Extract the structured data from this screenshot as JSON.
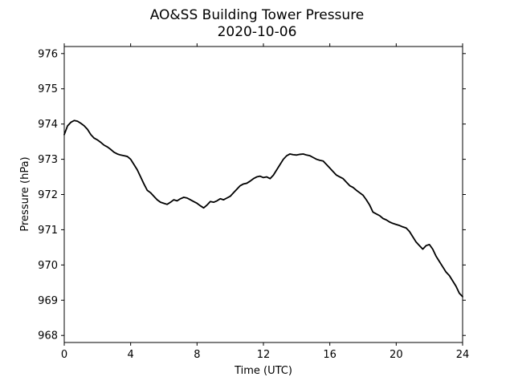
{
  "chart_data": {
    "type": "line",
    "title": "AO&SS Building Tower Pressure",
    "subtitle": "2020-10-06",
    "xlabel": "Time (UTC)",
    "ylabel": "Pressure (hPa)",
    "xlim": [
      0,
      24
    ],
    "ylim": [
      967.8,
      976.2
    ],
    "x_ticks": [
      0,
      4,
      8,
      12,
      16,
      20,
      24
    ],
    "x_tick_labels": [
      "0",
      "4",
      "8",
      "12",
      "16",
      "20",
      "24"
    ],
    "y_ticks": [
      968,
      969,
      970,
      971,
      972,
      973,
      974,
      975,
      976
    ],
    "y_tick_labels": [
      "968",
      "969",
      "970",
      "971",
      "972",
      "973",
      "974",
      "975",
      "976"
    ],
    "grid": false,
    "colors": {
      "line": "#000000",
      "axes": "#000000",
      "background": "#ffffff"
    },
    "series": [
      {
        "x": [
          0.0,
          0.2,
          0.4,
          0.6,
          0.8,
          1.0,
          1.2,
          1.4,
          1.6,
          1.8,
          2.0,
          2.2,
          2.4,
          2.6,
          2.8,
          3.0,
          3.2,
          3.4,
          3.6,
          3.8,
          4.0,
          4.2,
          4.4,
          4.6,
          4.8,
          5.0,
          5.2,
          5.4,
          5.6,
          5.8,
          6.0,
          6.2,
          6.4,
          6.6,
          6.8,
          7.0,
          7.2,
          7.4,
          7.6,
          7.8,
          8.0,
          8.2,
          8.4,
          8.6,
          8.8,
          9.0,
          9.2,
          9.4,
          9.6,
          9.8,
          10.0,
          10.2,
          10.4,
          10.6,
          10.8,
          11.0,
          11.2,
          11.4,
          11.6,
          11.8,
          12.0,
          12.2,
          12.4,
          12.6,
          12.8,
          13.0,
          13.2,
          13.4,
          13.6,
          13.8,
          14.0,
          14.2,
          14.4,
          14.6,
          14.8,
          15.0,
          15.2,
          15.4,
          15.6,
          15.8,
          16.0,
          16.2,
          16.4,
          16.6,
          16.8,
          17.0,
          17.2,
          17.4,
          17.6,
          17.8,
          18.0,
          18.2,
          18.4,
          18.6,
          18.8,
          19.0,
          19.2,
          19.4,
          19.6,
          19.8,
          20.0,
          20.2,
          20.4,
          20.6,
          20.8,
          21.0,
          21.2,
          21.4,
          21.6,
          21.8,
          22.0,
          22.2,
          22.4,
          22.6,
          22.8,
          23.0,
          23.2,
          23.4,
          23.6,
          23.8,
          24.0
        ],
        "y": [
          973.7,
          973.95,
          974.05,
          974.1,
          974.08,
          974.02,
          973.95,
          973.85,
          973.7,
          973.6,
          973.55,
          973.48,
          973.4,
          973.35,
          973.28,
          973.2,
          973.15,
          973.12,
          973.1,
          973.08,
          973.0,
          972.85,
          972.7,
          972.5,
          972.3,
          972.12,
          972.05,
          971.95,
          971.85,
          971.78,
          971.75,
          971.72,
          971.78,
          971.85,
          971.82,
          971.88,
          971.92,
          971.9,
          971.85,
          971.8,
          971.75,
          971.68,
          971.62,
          971.7,
          971.8,
          971.78,
          971.82,
          971.88,
          971.85,
          971.9,
          971.95,
          972.05,
          972.15,
          972.25,
          972.3,
          972.32,
          972.38,
          972.45,
          972.5,
          972.52,
          972.48,
          972.5,
          972.45,
          972.55,
          972.7,
          972.85,
          973.0,
          973.1,
          973.15,
          973.13,
          973.12,
          973.14,
          973.15,
          973.12,
          973.1,
          973.05,
          973.0,
          972.97,
          972.95,
          972.85,
          972.75,
          972.65,
          972.55,
          972.5,
          972.45,
          972.35,
          972.25,
          972.2,
          972.12,
          972.05,
          971.98,
          971.85,
          971.7,
          971.5,
          971.45,
          971.4,
          971.32,
          971.28,
          971.22,
          971.18,
          971.15,
          971.12,
          971.08,
          971.05,
          970.95,
          970.8,
          970.65,
          970.55,
          970.45,
          970.55,
          970.58,
          970.45,
          970.25,
          970.1,
          969.95,
          969.8,
          969.7,
          969.55,
          969.4,
          969.2,
          969.1
        ]
      }
    ]
  }
}
